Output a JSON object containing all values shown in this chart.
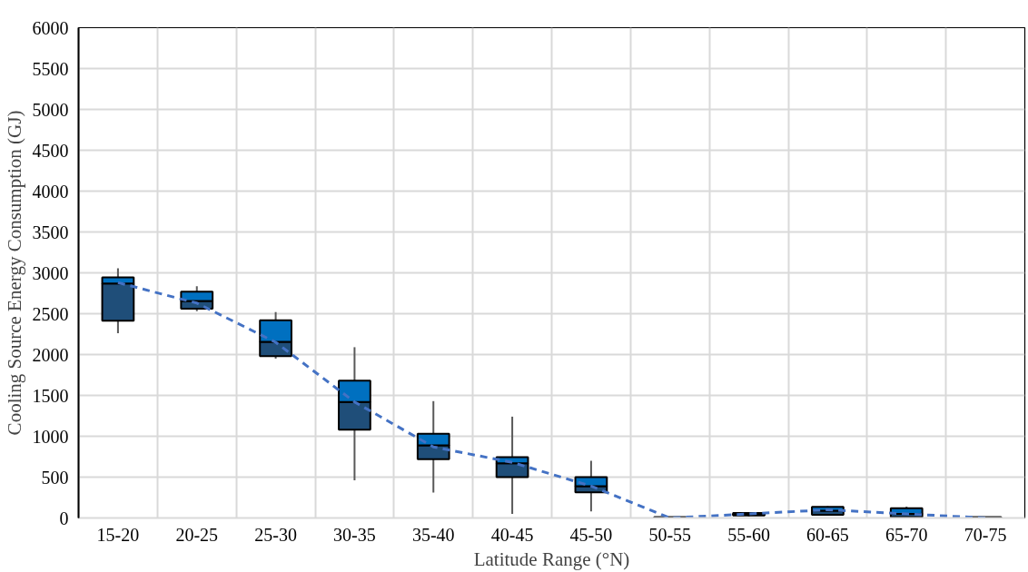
{
  "chart_data": {
    "type": "box",
    "xlabel": "Latitude Range (°N)",
    "ylabel": "Cooling Source Energy Consumption (GJ)",
    "categories": [
      "15-20",
      "20-25",
      "25-30",
      "30-35",
      "35-40",
      "40-45",
      "45-50",
      "50-55",
      "55-60",
      "60-65",
      "65-70",
      "70-75"
    ],
    "ylim": [
      0,
      6000
    ],
    "yticks": [
      0,
      500,
      1000,
      1500,
      2000,
      2500,
      3000,
      3500,
      4000,
      4500,
      5000,
      5500,
      6000
    ],
    "grid": true,
    "series": [
      {
        "type": "box",
        "color": "#0070c0",
        "colors": [
          "#1f4e79",
          "#1f4e79",
          "#1f4e79",
          "#1f4e79",
          "#1f4e79",
          "#1f4e79",
          "#1f4e79",
          "#1f4e79",
          "#1f4e79",
          "#1f4e79",
          "#1f4e79",
          "#1f4e79"
        ],
        "boxes": [
          {
            "low": 2260,
            "q1": 2415,
            "median": 2870,
            "q3": 2945,
            "high": 3055
          },
          {
            "low": 2530,
            "q1": 2560,
            "median": 2655,
            "q3": 2770,
            "high": 2835
          },
          {
            "low": 1950,
            "q1": 1980,
            "median": 2155,
            "q3": 2420,
            "high": 2520
          },
          {
            "low": 460,
            "q1": 1080,
            "median": 1420,
            "q3": 1680,
            "high": 2090
          },
          {
            "low": 310,
            "q1": 720,
            "median": 890,
            "q3": 1030,
            "high": 1430
          },
          {
            "low": 50,
            "q1": 500,
            "median": 670,
            "q3": 745,
            "high": 1240
          },
          {
            "low": 80,
            "q1": 315,
            "median": 390,
            "q3": 500,
            "high": 700
          },
          {
            "low": 0,
            "q1": 0,
            "median": 5,
            "q3": 10,
            "high": 15
          },
          {
            "low": 20,
            "q1": 30,
            "median": 45,
            "q3": 60,
            "high": 65
          },
          {
            "low": 30,
            "q1": 40,
            "median": 90,
            "q3": 135,
            "high": 145
          },
          {
            "low": 0,
            "q1": 10,
            "median": 50,
            "q3": 120,
            "high": 140
          },
          {
            "low": 0,
            "q1": 0,
            "median": 5,
            "q3": 10,
            "high": 15
          }
        ]
      },
      {
        "type": "line",
        "color": "#4472c4",
        "line_style": "dashed",
        "values": [
          2880,
          2630,
          2150,
          1420,
          870,
          680,
          390,
          0,
          50,
          100,
          50,
          0
        ]
      }
    ]
  }
}
